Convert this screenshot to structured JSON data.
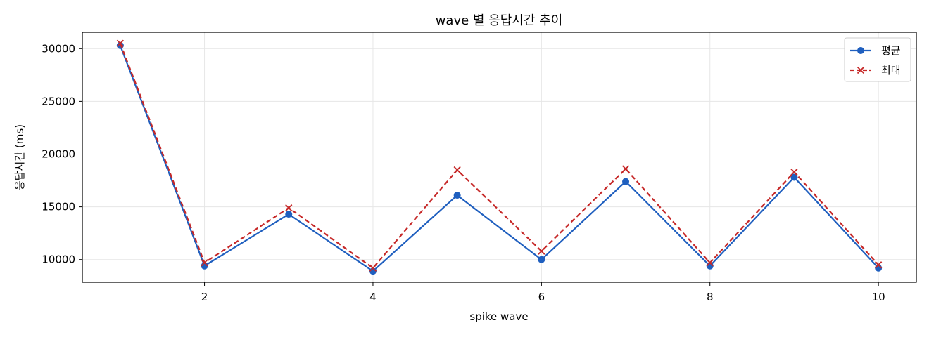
{
  "chart_data": {
    "type": "line",
    "title": "wave 별 응답시간 추이",
    "xlabel": "spike wave",
    "ylabel": "응답시간 (ms)",
    "x": [
      1,
      2,
      3,
      4,
      5,
      6,
      7,
      8,
      9,
      10
    ],
    "xlim": [
      0.55,
      10.45
    ],
    "ylim": [
      7850,
      31550
    ],
    "xticks": [
      2,
      4,
      6,
      8,
      10
    ],
    "yticks": [
      10000,
      15000,
      20000,
      25000,
      30000
    ],
    "x_tick_labels": [
      "2",
      "4",
      "6",
      "8",
      "10"
    ],
    "y_tick_labels": [
      "10000",
      "15000",
      "20000",
      "25000",
      "30000"
    ],
    "grid": true,
    "legend_position": "top-right",
    "series": [
      {
        "name": "평균",
        "color": "#1f5fbf",
        "line_style": "solid",
        "marker": "circle",
        "values": [
          30300,
          9400,
          14300,
          8900,
          16100,
          10000,
          17400,
          9400,
          17800,
          9200
        ]
      },
      {
        "name": "최대",
        "color": "#c62828",
        "line_style": "dashed",
        "marker": "x",
        "values": [
          30500,
          9700,
          14900,
          9200,
          18500,
          10800,
          18600,
          9700,
          18300,
          9500
        ]
      }
    ]
  }
}
